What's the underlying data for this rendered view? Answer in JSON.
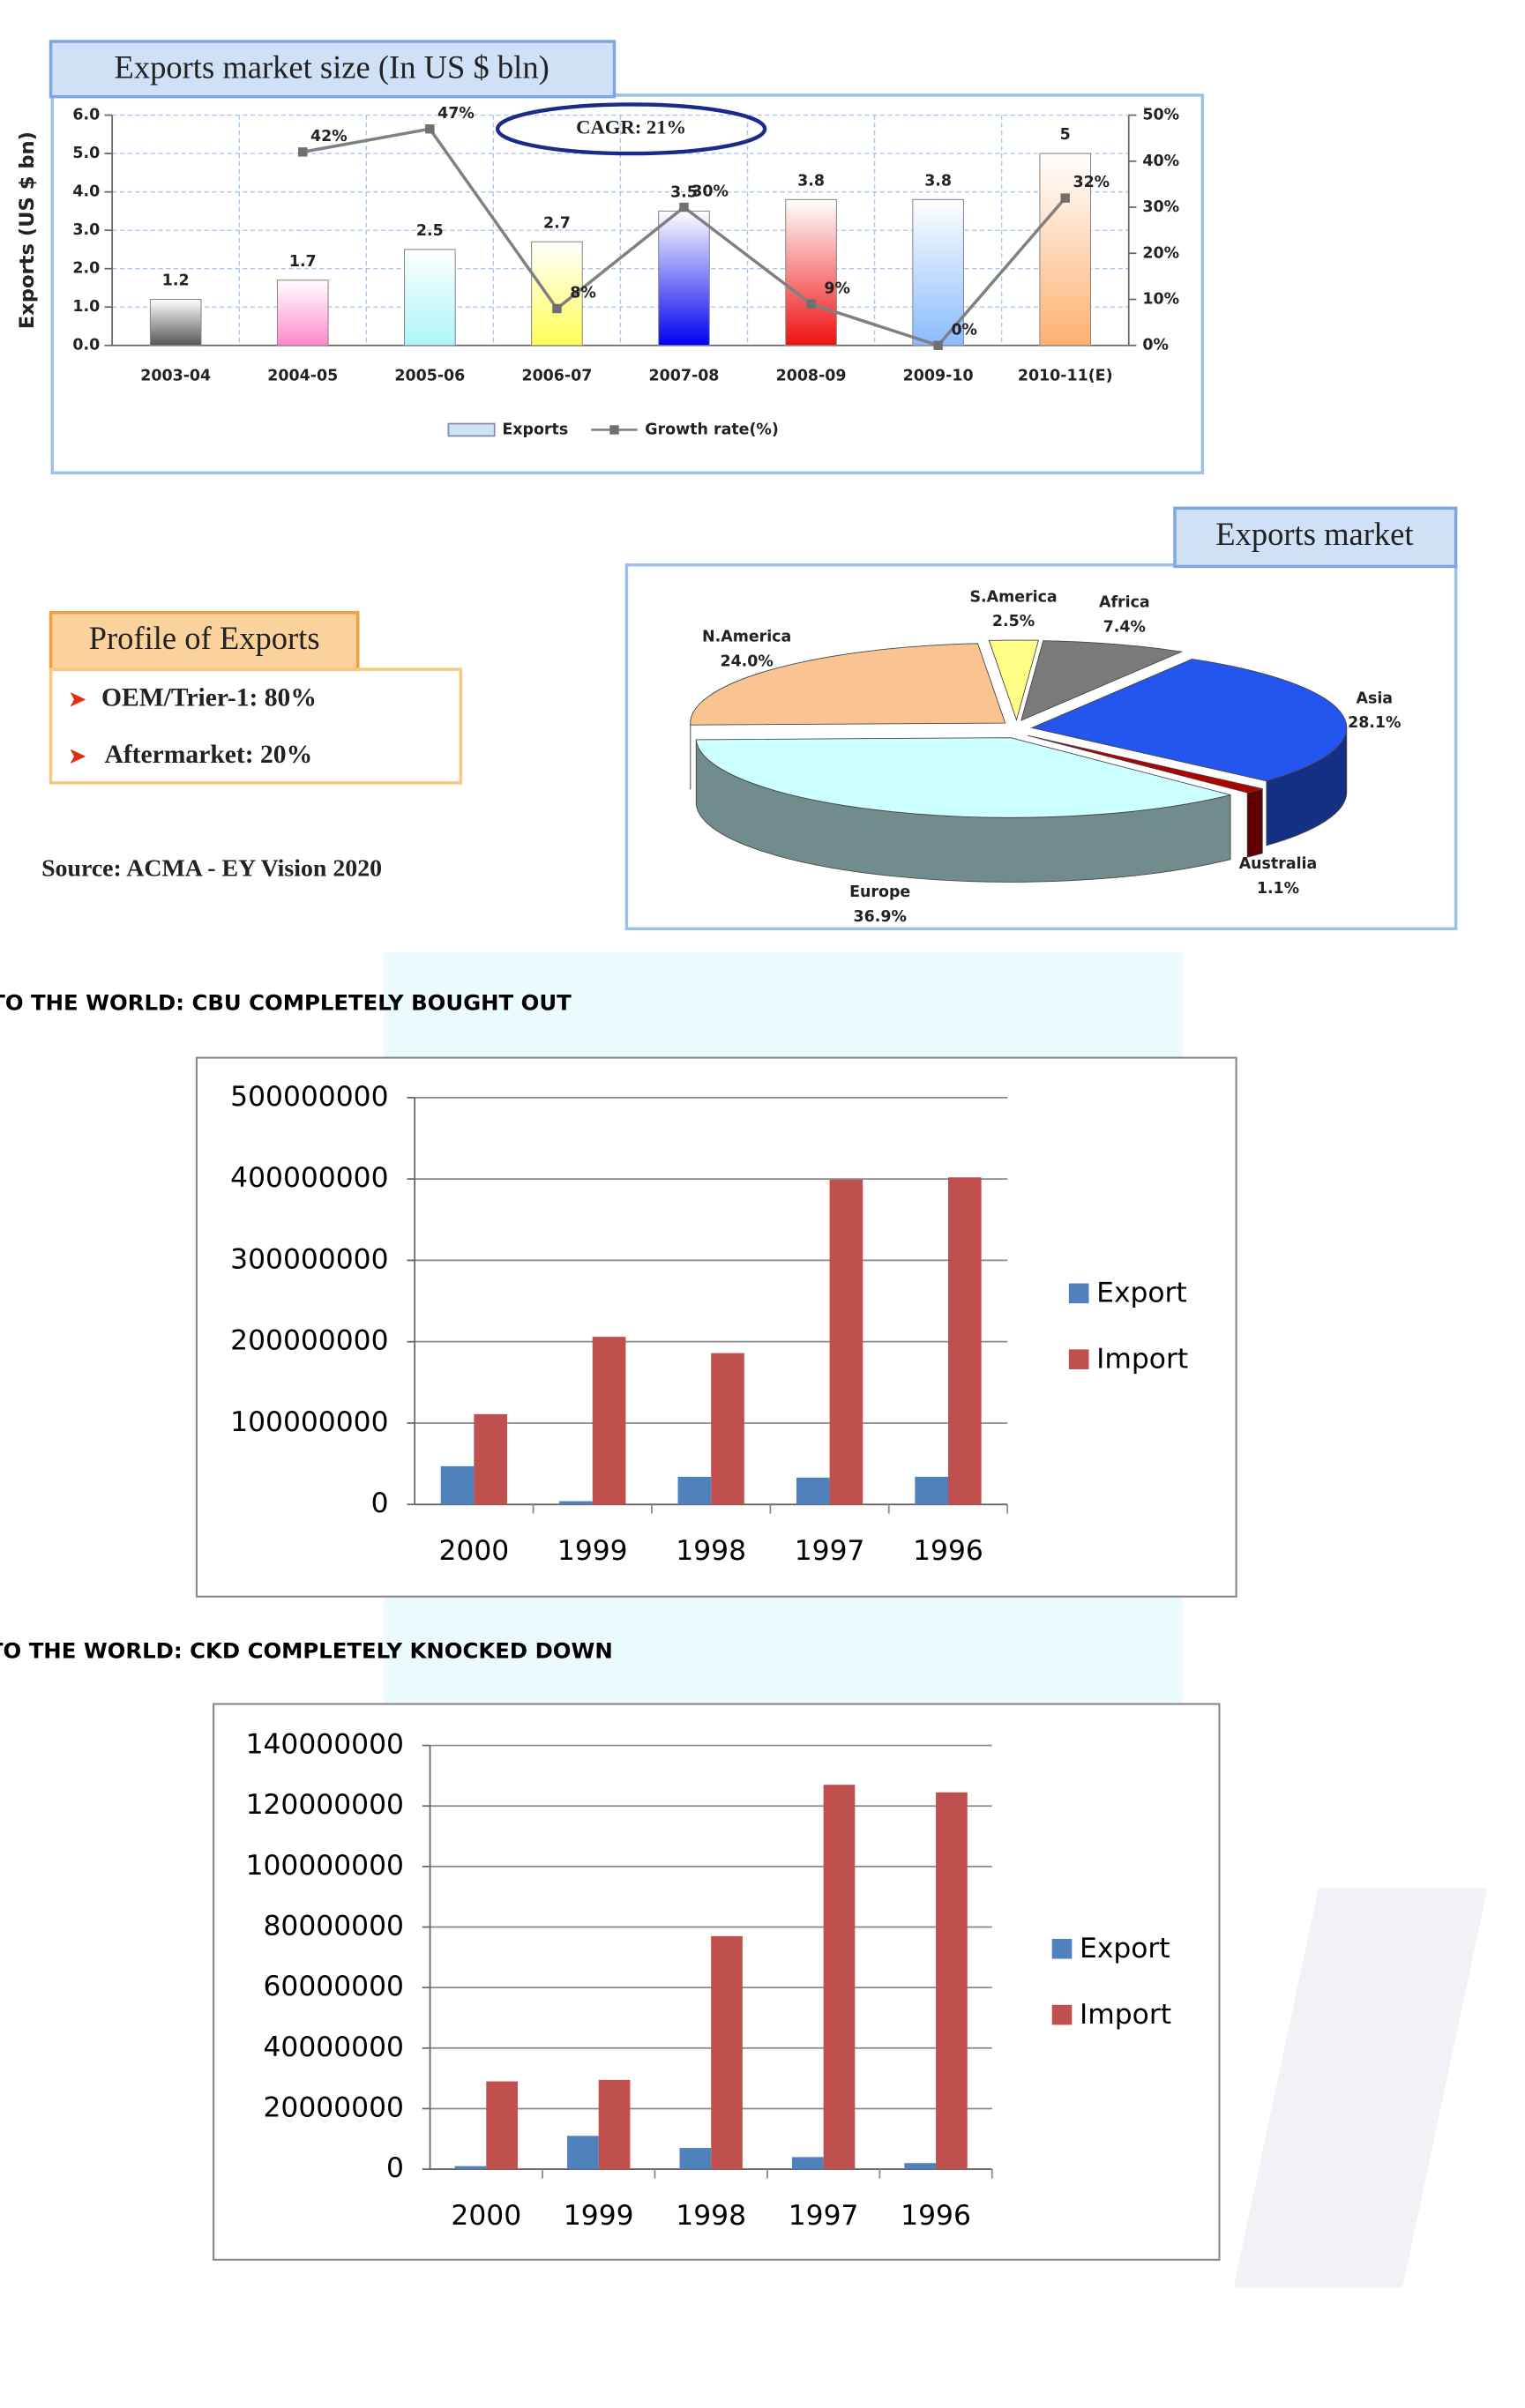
{
  "chart_data": [
    {
      "type": "bar",
      "title": "Exports market size (In US $ bln)",
      "y_label": "Exports (US $ bn)",
      "annotation": "CAGR: 21%",
      "categories": [
        "2003-04",
        "2004-05",
        "2005-06",
        "2006-07",
        "2007-08",
        "2008-09",
        "2009-10",
        "2010-11(E)"
      ],
      "series": [
        {
          "name": "Exports",
          "color": "#cfe3f7",
          "colors": [
            "#555555",
            "#ff88c8",
            "#aef4f8",
            "#ffff55",
            "#0000ee",
            "#ee1111",
            "#88bbff",
            "#ffb070"
          ],
          "values": [
            1.2,
            1.7,
            2.5,
            2.7,
            3.5,
            3.8,
            3.8,
            5
          ]
        },
        {
          "name": "Growth rate(%)",
          "type": "line",
          "axis": "y2",
          "color": "#808080",
          "values": [
            null,
            42,
            47,
            8,
            30,
            9,
            0,
            32
          ],
          "value_labels": [
            null,
            "42%",
            "47%",
            "8%",
            "30%",
            "9%",
            "0%",
            "32%"
          ]
        }
      ],
      "ylim": [
        0,
        6
      ],
      "yticks": [
        {
          "value": 0,
          "label": "0.0"
        },
        {
          "value": 1,
          "label": "1.0"
        },
        {
          "value": 2,
          "label": "2.0"
        },
        {
          "value": 3,
          "label": "3.0"
        },
        {
          "value": 4,
          "label": "4.0"
        },
        {
          "value": 5,
          "label": "5.0"
        },
        {
          "value": 6,
          "label": "6.0"
        }
      ],
      "y2lim": [
        0,
        50
      ],
      "y2ticks": [
        {
          "value": 0,
          "label": "0%"
        },
        {
          "value": 10,
          "label": "10%"
        },
        {
          "value": 20,
          "label": "20%"
        },
        {
          "value": 30,
          "label": "30%"
        },
        {
          "value": 40,
          "label": "40%"
        },
        {
          "value": 50,
          "label": "50%"
        }
      ],
      "grid": true,
      "legend": "bottom"
    },
    {
      "type": "pie",
      "title": "Exports market",
      "categories": [
        "N.America",
        "S.America",
        "Africa",
        "Asia",
        "Australia",
        "Europe"
      ],
      "values": [
        24.0,
        2.5,
        7.4,
        28.1,
        1.1,
        36.9
      ],
      "value_labels": [
        "24.0%",
        "2.5%",
        "7.4%",
        "28.1%",
        "1.1%",
        "36.9%"
      ],
      "colors": [
        "#f9c491",
        "#ffff88",
        "#7a7a7a",
        "#2455ee",
        "#b00000",
        "#ccffff"
      ]
    },
    {
      "type": "bar",
      "title": "TO THE WORLD: CBU COMPLETELY BOUGHT OUT",
      "categories": [
        "2000",
        "1999",
        "1998",
        "1997",
        "1996"
      ],
      "series": [
        {
          "name": "Export",
          "color": "#4f81bd",
          "values": [
            47000000,
            4000000,
            34000000,
            33000000,
            34000000
          ]
        },
        {
          "name": "Import",
          "color": "#c0504d",
          "values": [
            111000000,
            206000000,
            186000000,
            399000000,
            402000000
          ]
        }
      ],
      "ylim": [
        0,
        500000000
      ],
      "yticks": [
        0,
        100000000,
        200000000,
        300000000,
        400000000,
        500000000
      ],
      "grid": true,
      "legend": "right"
    },
    {
      "type": "bar",
      "title": "TO THE WORLD: CKD COMPLETELY KNOCKED DOWN",
      "categories": [
        "2000",
        "1999",
        "1998",
        "1997",
        "1996"
      ],
      "series": [
        {
          "name": "Export",
          "color": "#4f81bd",
          "values": [
            1000000,
            11000000,
            7000000,
            4000000,
            2000000
          ]
        },
        {
          "name": "Import",
          "color": "#c0504d",
          "values": [
            29000000,
            29500000,
            77000000,
            127000000,
            124500000
          ]
        }
      ],
      "ylim": [
        0,
        140000000
      ],
      "yticks": [
        0,
        20000000,
        40000000,
        60000000,
        80000000,
        100000000,
        120000000,
        140000000
      ],
      "grid": true,
      "legend": "right"
    }
  ],
  "profile": {
    "title": "Profile of Exports",
    "items": [
      "OEM/Trier-1: 80%",
      "Aftermarket: 20%"
    ]
  },
  "source": "Source: ACMA - EY Vision 2020"
}
